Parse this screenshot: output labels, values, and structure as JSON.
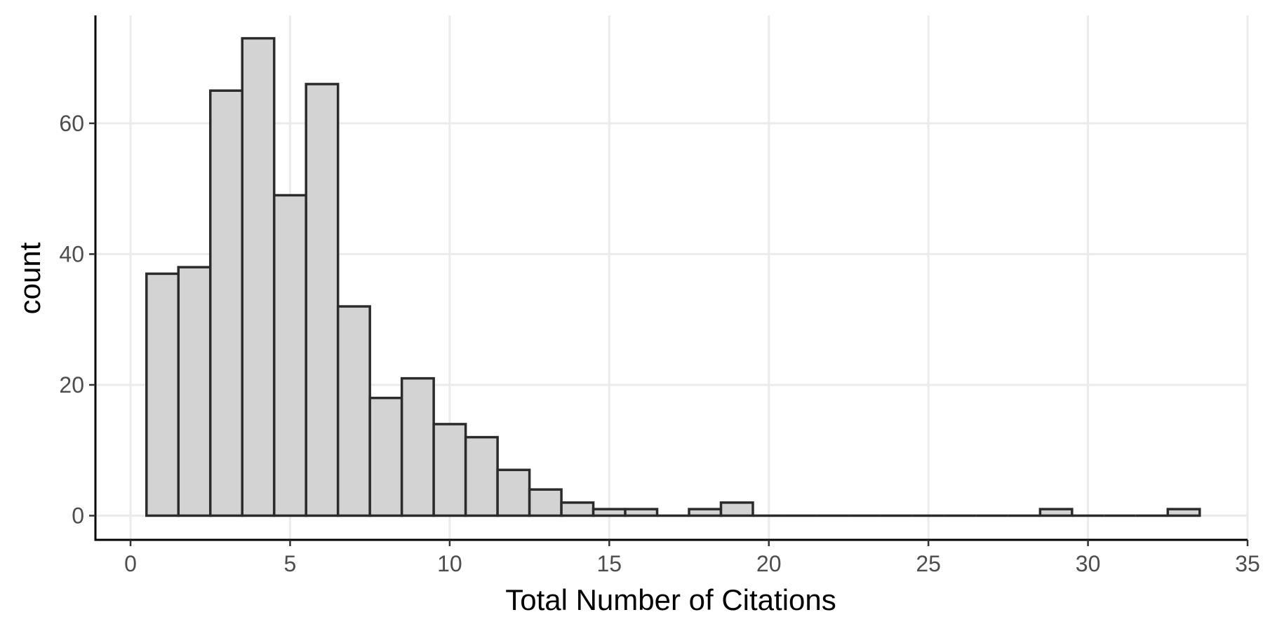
{
  "chart_data": {
    "type": "bar",
    "subtype": "histogram",
    "title": "",
    "xlabel": "Total Number of Citations",
    "ylabel": "count",
    "binwidth": 1,
    "bin_centers": [
      1,
      2,
      3,
      4,
      5,
      6,
      7,
      8,
      9,
      10,
      11,
      12,
      13,
      14,
      15,
      16,
      17,
      18,
      19,
      20,
      21,
      22,
      23,
      24,
      25,
      26,
      27,
      28,
      29,
      30,
      31,
      32,
      33
    ],
    "values": [
      37,
      38,
      65,
      73,
      49,
      66,
      32,
      18,
      21,
      14,
      12,
      7,
      4,
      2,
      1,
      1,
      0,
      1,
      2,
      0,
      0,
      0,
      0,
      0,
      0,
      0,
      0,
      0,
      1,
      0,
      0,
      0,
      1
    ],
    "xlim": [
      -1.1,
      35
    ],
    "ylim": [
      -3.7,
      76.5
    ],
    "x_ticks": [
      0,
      5,
      10,
      15,
      20,
      25,
      30,
      35
    ],
    "y_ticks": [
      0,
      20,
      40,
      60
    ],
    "grid": true,
    "legend": "none",
    "bar_fill": "#d3d3d3",
    "bar_outline": "#2b2b2b",
    "grid_color": "#ebebeb"
  }
}
